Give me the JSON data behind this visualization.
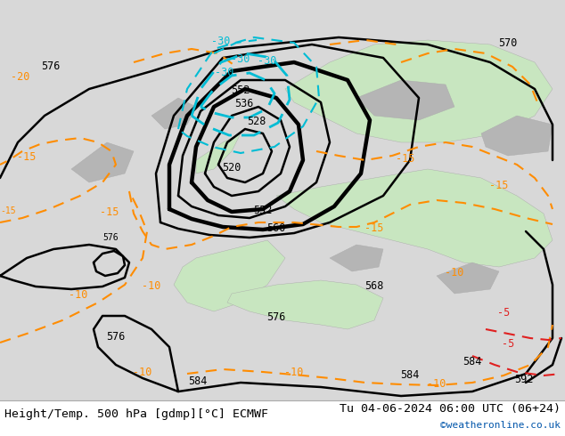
{
  "title_left": "Height/Temp. 500 hPa [gdmp][°C] ECMWF",
  "title_right": "Tu 04-06-2024 06:00 UTC (06+24)",
  "credit": "©weatheronline.co.uk",
  "bg_color": "#d8d8d8",
  "land_green": "#c8e6c0",
  "sea_gray": "#d0d0d0",
  "mountain_gray": "#b5b5b5",
  "geop_color": "#000000",
  "temp_orange": "#ff8c00",
  "temp_cyan": "#00bcd4",
  "temp_red": "#e02020",
  "geop_linewidth": 1.8,
  "geop_bold_linewidth": 3.2,
  "temp_linewidth": 1.5,
  "label_fontsize": 8.5,
  "title_fontsize": 9.5,
  "credit_fontsize": 8.0
}
